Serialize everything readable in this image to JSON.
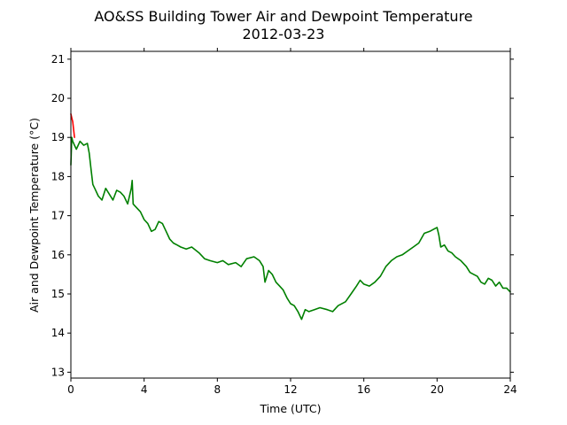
{
  "chart_data": {
    "type": "line",
    "title": "AO&SS Building Tower Air and Dewpoint Temperature",
    "subtitle": "2012-03-23",
    "xlabel": "Time (UTC)",
    "ylabel": "Air and Dewpoint Temperature (°C)",
    "xlim": [
      0,
      24
    ],
    "ylim": [
      12.85,
      21.2
    ],
    "xticks": [
      0,
      4,
      8,
      12,
      16,
      20,
      24
    ],
    "yticks": [
      13,
      14,
      15,
      16,
      17,
      18,
      19,
      20,
      21
    ],
    "grid": false,
    "series": [
      {
        "color": "#ff0000",
        "x": [
          0,
          0.05,
          0.1,
          0.15,
          0.2
        ],
        "y": [
          19.6,
          19.5,
          19.4,
          19.2,
          19.0
        ]
      },
      {
        "color": "#008000",
        "x": [
          0,
          0.05,
          0.1,
          0.2,
          0.3,
          0.5,
          0.7,
          0.9,
          1.0,
          1.1,
          1.2,
          1.3,
          1.5,
          1.7,
          1.9,
          2.1,
          2.3,
          2.5,
          2.7,
          2.9,
          3.1,
          3.3,
          3.35,
          3.4,
          3.5,
          3.6,
          3.8,
          4.0,
          4.2,
          4.4,
          4.6,
          4.8,
          5.0,
          5.2,
          5.4,
          5.6,
          5.8,
          6.0,
          6.3,
          6.6,
          7.0,
          7.3,
          7.6,
          8.0,
          8.3,
          8.6,
          9.0,
          9.3,
          9.6,
          10.0,
          10.3,
          10.5,
          10.6,
          10.8,
          11.0,
          11.2,
          11.4,
          11.6,
          11.8,
          12.0,
          12.2,
          12.4,
          12.6,
          12.8,
          13.0,
          13.3,
          13.6,
          14.0,
          14.3,
          14.6,
          15.0,
          15.3,
          15.6,
          15.8,
          16.0,
          16.3,
          16.6,
          16.9,
          17.2,
          17.5,
          17.8,
          18.1,
          18.4,
          18.7,
          19.0,
          19.3,
          19.6,
          19.8,
          20.0,
          20.1,
          20.2,
          20.4,
          20.6,
          20.8,
          21.0,
          21.3,
          21.6,
          21.8,
          22.0,
          22.2,
          22.4,
          22.6,
          22.8,
          23.0,
          23.2,
          23.4,
          23.6,
          23.8,
          24.0
        ],
        "y": [
          18.3,
          19.0,
          18.9,
          18.8,
          18.7,
          18.9,
          18.8,
          18.85,
          18.6,
          18.2,
          17.8,
          17.7,
          17.5,
          17.4,
          17.7,
          17.55,
          17.4,
          17.65,
          17.6,
          17.5,
          17.3,
          17.7,
          17.9,
          17.3,
          17.25,
          17.2,
          17.1,
          16.9,
          16.8,
          16.6,
          16.65,
          16.85,
          16.8,
          16.6,
          16.4,
          16.3,
          16.25,
          16.2,
          16.15,
          16.2,
          16.05,
          15.9,
          15.85,
          15.8,
          15.85,
          15.75,
          15.8,
          15.7,
          15.9,
          15.95,
          15.85,
          15.7,
          15.3,
          15.6,
          15.5,
          15.3,
          15.2,
          15.1,
          14.9,
          14.75,
          14.7,
          14.55,
          14.35,
          14.6,
          14.55,
          14.6,
          14.65,
          14.6,
          14.55,
          14.7,
          14.8,
          15.0,
          15.2,
          15.35,
          15.25,
          15.2,
          15.3,
          15.45,
          15.7,
          15.85,
          15.95,
          16.0,
          16.1,
          16.2,
          16.3,
          16.55,
          16.6,
          16.65,
          16.7,
          16.5,
          16.2,
          16.25,
          16.1,
          16.05,
          15.95,
          15.85,
          15.7,
          15.55,
          15.5,
          15.45,
          15.3,
          15.25,
          15.4,
          15.35,
          15.2,
          15.3,
          15.15,
          15.15,
          15.05
        ]
      }
    ]
  }
}
